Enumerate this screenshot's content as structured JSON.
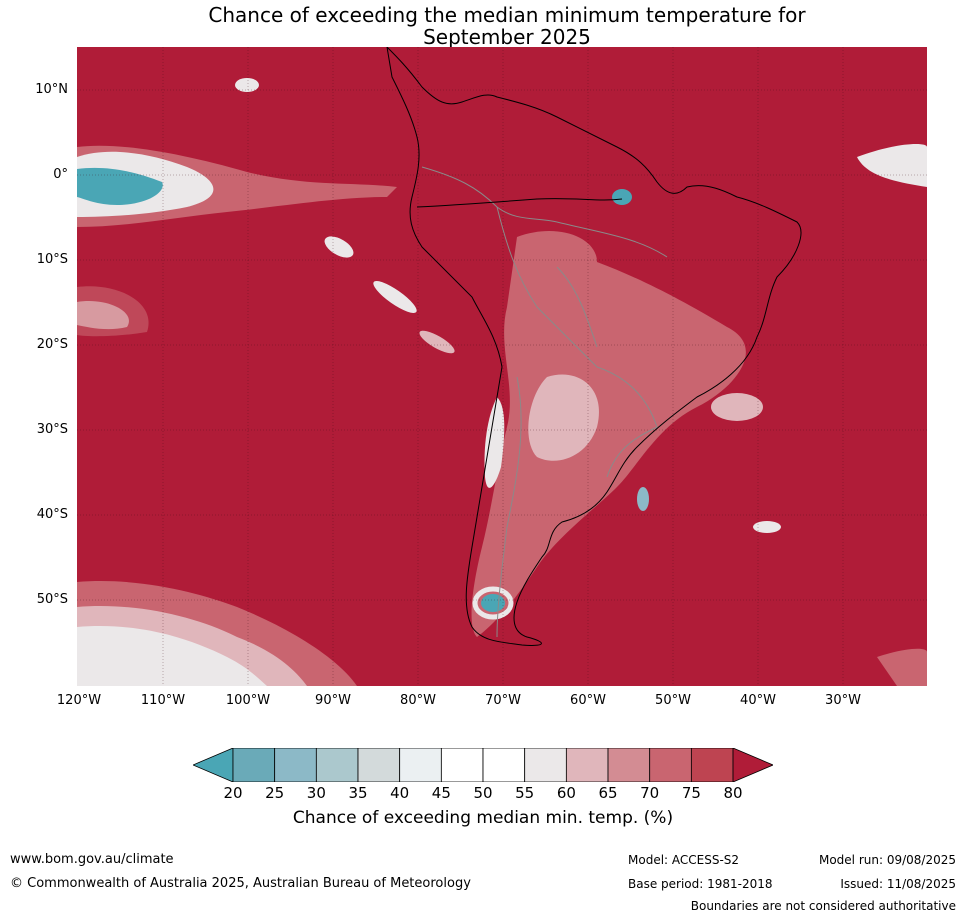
{
  "title_line1": "Chance of exceeding the median minimum temperature for",
  "title_line2": "September 2025",
  "lat_labels": [
    "10°N",
    "0°",
    "10°S",
    "20°S",
    "30°S",
    "40°S",
    "50°S"
  ],
  "lon_labels": [
    "120°W",
    "110°W",
    "100°W",
    "90°W",
    "80°W",
    "70°W",
    "60°W",
    "50°W",
    "40°W",
    "30°W"
  ],
  "colorbar": {
    "ticks": [
      "20",
      "25",
      "30",
      "35",
      "40",
      "45",
      "50",
      "55",
      "60",
      "65",
      "70",
      "75",
      "80"
    ],
    "colors": [
      "#4aa6b5",
      "#6aaab8",
      "#8cb9c7",
      "#abc8cd",
      "#d3dadb",
      "#ebf0f2",
      "#ffffff",
      "#ffffff",
      "#ebe8e9",
      "#e0b6bb",
      "#d38c93",
      "#c96570",
      "#be4451",
      "#b01c38"
    ],
    "label": "Chance of exceeding median min. temp. (%)"
  },
  "map_colors": {
    "high": "#b01c38",
    "mid": "#c96570",
    "light": "#e0b6bb",
    "white": "#ebe8e9",
    "blue": "#4aa6b5"
  },
  "footer": {
    "url": "www.bom.gov.au/climate",
    "copyright": "© Commonwealth of Australia 2025, Australian Bureau of Meteorology",
    "model": "Model: ACCESS-S2",
    "base_period": "Base period: 1981-2018",
    "model_run": "Model run: 09/08/2025",
    "issued": "Issued: 11/08/2025",
    "disclaimer": "Boundaries are not considered authoritative"
  }
}
